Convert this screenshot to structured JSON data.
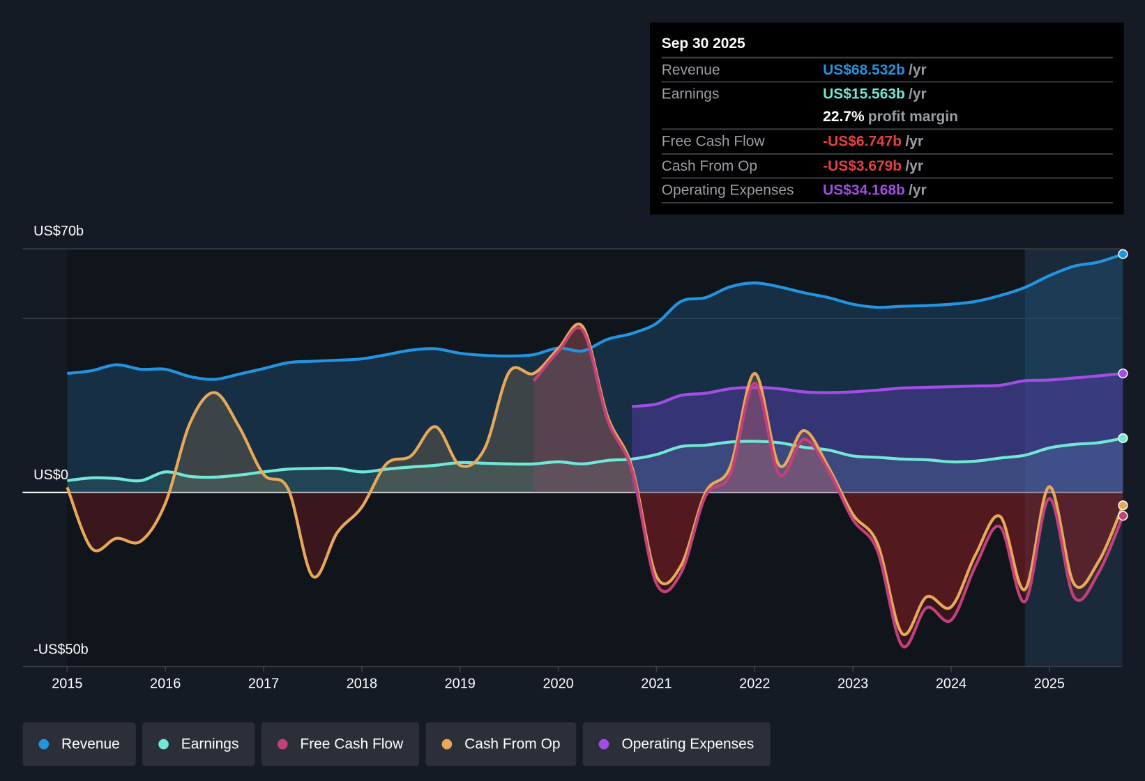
{
  "tooltip": {
    "date": "Sep 30 2025",
    "rows": [
      {
        "label": "Revenue",
        "value": "US$68.532b",
        "unit": "/yr",
        "color": "#2394df"
      },
      {
        "label": "Earnings",
        "value": "US$15.563b",
        "unit": "/yr",
        "color": "#71e7d6"
      },
      {
        "label": "",
        "value": "22.7%",
        "unit": "profit margin",
        "color": "#ffffff"
      },
      {
        "label": "Free Cash Flow",
        "value": "-US$6.747b",
        "unit": "/yr",
        "color": "#e64141"
      },
      {
        "label": "Cash From Op",
        "value": "-US$3.679b",
        "unit": "/yr",
        "color": "#e64141"
      },
      {
        "label": "Operating Expenses",
        "value": "US$34.168b",
        "unit": "/yr",
        "color": "#a24de5"
      }
    ]
  },
  "chart_data": {
    "type": "line",
    "title": "",
    "xlabel": "",
    "ylabel": "",
    "ylim": [
      -50,
      70
    ],
    "xlim": [
      2014.55,
      2025.75
    ],
    "y_tick_labels": [
      {
        "value": 70,
        "label": "US$70b"
      },
      {
        "value": 0,
        "label": "US$0"
      },
      {
        "value": -50,
        "label": "-US$50b"
      }
    ],
    "gridlines": [
      70,
      50,
      0,
      -50
    ],
    "x_ticks": [
      2015,
      2016,
      2017,
      2018,
      2019,
      2020,
      2021,
      2022,
      2023,
      2024,
      2025
    ],
    "x_tick_labels": [
      "2015",
      "2016",
      "2017",
      "2018",
      "2019",
      "2020",
      "2021",
      "2022",
      "2023",
      "2024",
      "2025"
    ],
    "highlight_from": 2024.75,
    "series": [
      {
        "name": "Revenue",
        "color": "#2394df",
        "start": 2015.0,
        "step": 0.25,
        "values": [
          34.2,
          35,
          36.7,
          35.4,
          35.4,
          33.3,
          32.5,
          34,
          35.6,
          37.3,
          37.7,
          38,
          38.4,
          39.6,
          40.9,
          41.3,
          40,
          39.4,
          39.2,
          39.6,
          41.5,
          40.7,
          44,
          45.7,
          48.6,
          54.9,
          56,
          59.1,
          60.2,
          59.1,
          57.4,
          56,
          54.1,
          53.2,
          53.5,
          53.7,
          54.1,
          54.9,
          56.6,
          58.9,
          62.3,
          65,
          66.2,
          68.5
        ]
      },
      {
        "name": "Earnings",
        "color": "#71e7d6",
        "start": 2015.0,
        "step": 0.25,
        "values": [
          3.4,
          4.2,
          4,
          3.4,
          5.9,
          4.6,
          4.4,
          5,
          5.9,
          6.7,
          6.9,
          6.9,
          5.9,
          6.7,
          7.3,
          7.8,
          8.6,
          8.4,
          8.2,
          8.2,
          8.8,
          8.2,
          9.2,
          9.6,
          10.9,
          13.2,
          13.6,
          14.5,
          14.7,
          14.3,
          13,
          12.2,
          10.5,
          10.1,
          9.6,
          9.4,
          8.8,
          9,
          9.9,
          10.7,
          12.8,
          13.8,
          14.3,
          15.6
        ]
      },
      {
        "name": "Free Cash Flow",
        "color": "#c2417a",
        "start": 2019.75,
        "step": 0.25,
        "values": [
          32.1,
          40.5,
          46.5,
          21,
          6.3,
          -26.2,
          -23.1,
          -1,
          5.2,
          31.4,
          5.2,
          15.3,
          6.3,
          -7.8,
          -16.8,
          -44,
          -33.1,
          -36.7,
          -21,
          -9.9,
          -31.4,
          -1.7,
          -30,
          -23.1,
          -6.7
        ]
      },
      {
        "name": "Cash From Op",
        "color": "#e8a958",
        "start": 2015.0,
        "step": 0.25,
        "values": [
          1.5,
          -16.1,
          -13.2,
          -14,
          -3.1,
          19.9,
          28.7,
          18.9,
          5.2,
          1,
          -24.1,
          -11.5,
          -4.2,
          8.2,
          10.5,
          18.9,
          7.8,
          12.6,
          34.6,
          34.2,
          41.3,
          47.6,
          22,
          7.3,
          -24.1,
          -21,
          0,
          7.3,
          34.2,
          7.8,
          17.8,
          7.3,
          -6.3,
          -14.7,
          -40.5,
          -30,
          -32.9,
          -17.8,
          -6.9,
          -27.9,
          1.7,
          -26.2,
          -19.9,
          -3.7
        ]
      },
      {
        "name": "Operating Expenses",
        "color": "#a24de5",
        "start": 2020.75,
        "step": 0.25,
        "values": [
          24.7,
          25.4,
          27.9,
          28.5,
          29.8,
          30.2,
          29.8,
          28.9,
          28.7,
          28.9,
          29.4,
          30,
          30.2,
          30.4,
          30.6,
          30.8,
          32.1,
          32.3,
          32.9,
          33.5,
          34.2
        ]
      }
    ]
  },
  "legend": [
    {
      "label": "Revenue",
      "color": "#2394df"
    },
    {
      "label": "Earnings",
      "color": "#71e7d6"
    },
    {
      "label": "Free Cash Flow",
      "color": "#c2417a"
    },
    {
      "label": "Cash From Op",
      "color": "#e8a958"
    },
    {
      "label": "Operating Expenses",
      "color": "#a24de5"
    }
  ]
}
